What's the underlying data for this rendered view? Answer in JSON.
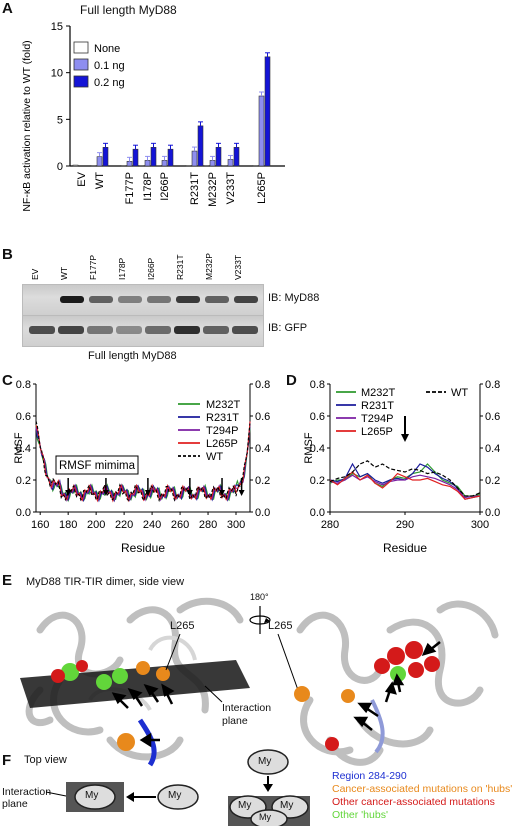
{
  "panels": {
    "A": {
      "letter": "A",
      "title": "Full length MyD88",
      "legend": [
        {
          "label": "None",
          "color": "#ffffff"
        },
        {
          "label": "0.1 ng",
          "color": "#8e8ef0"
        },
        {
          "label": "0.2 ng",
          "color": "#1414d6"
        }
      ]
    },
    "B": {
      "letter": "B",
      "lanes": [
        "EV",
        "WT",
        "F177P",
        "I178P",
        "I266P",
        "R231T",
        "M232P",
        "V233T"
      ],
      "blot_labels": [
        "IB: MyD88",
        "IB: GFP"
      ],
      "caption": "Full length MyD88"
    },
    "C": {
      "letter": "C"
    },
    "D": {
      "letter": "D"
    },
    "E": {
      "letter": "E",
      "title": "MyD88 TIR-TIR dimer, side view",
      "label_l265_left": "L265",
      "label_l265_right": "L265",
      "rotation": "180°",
      "plane_label": "Interaction plane"
    },
    "F": {
      "letter": "F",
      "title": "Top view",
      "plane_label": "Interaction plane",
      "my": "My",
      "legend": [
        {
          "label": "Region 284-290",
          "color": "#1d2fd1"
        },
        {
          "label": "Cancer-associated mutations on 'hubs'",
          "color": "#e8891c"
        },
        {
          "label": "Other cancer-associated mutations",
          "color": "#d41a1a"
        },
        {
          "label": "Other 'hubs'",
          "color": "#62d63a"
        }
      ]
    }
  },
  "chart_data": [
    {
      "type": "bar",
      "title": "Full length MyD88",
      "ylabel": "NF-κB activation relative to WT (fold)",
      "ylim": [
        0,
        15
      ],
      "yticks": [
        0,
        5,
        10,
        15
      ],
      "categories": [
        "EV",
        "WT",
        "F177P",
        "I178P",
        "I266P",
        "R231T",
        "M232P",
        "V233T",
        "L265P"
      ],
      "series": [
        {
          "name": "None",
          "color": "#ffffff",
          "values": [
            0.1,
            0.05,
            0.05,
            0.05,
            0.05,
            0.05,
            0.05,
            0.05,
            0.05
          ]
        },
        {
          "name": "0.1 ng",
          "color": "#8e8ef0",
          "values": [
            0,
            1.0,
            0.5,
            0.6,
            0.6,
            1.6,
            0.6,
            0.7,
            7.5
          ]
        },
        {
          "name": "0.2 ng",
          "color": "#1414d6",
          "values": [
            0,
            2.0,
            1.8,
            2.0,
            1.8,
            4.3,
            2.0,
            2.0,
            11.7
          ]
        }
      ]
    },
    {
      "type": "line",
      "xlabel": "Residue",
      "ylabel": "RMSF",
      "xlim": [
        157,
        310
      ],
      "ylim": [
        0,
        0.8
      ],
      "xticks": [
        160,
        180,
        200,
        220,
        240,
        260,
        280,
        300
      ],
      "yticks": [
        0.0,
        0.2,
        0.4,
        0.6,
        0.8
      ],
      "annotation": "RMSF mimima",
      "arrows_x": [
        180,
        207,
        237,
        267,
        290,
        304
      ],
      "series": [
        {
          "name": "M232T",
          "color": "#2e9a2e"
        },
        {
          "name": "R231T",
          "color": "#1c1c9c"
        },
        {
          "name": "T294P",
          "color": "#7b1fa2"
        },
        {
          "name": "L265P",
          "color": "#e02020"
        },
        {
          "name": "WT",
          "color": "#000000",
          "dashed": true
        }
      ]
    },
    {
      "type": "line",
      "xlabel": "Residue",
      "ylabel": "RMSF",
      "xlim": [
        280,
        300
      ],
      "ylim": [
        0,
        0.8
      ],
      "xticks": [
        280,
        290,
        300
      ],
      "yticks": [
        0.0,
        0.2,
        0.4,
        0.6,
        0.8
      ],
      "arrow_x": 290,
      "series": [
        {
          "name": "M232T",
          "color": "#2e9a2e",
          "x": [
            280,
            281,
            282,
            283,
            284,
            285,
            286,
            287,
            288,
            289,
            290,
            291,
            292,
            293,
            294,
            295,
            296,
            297,
            298,
            299,
            300
          ],
          "y": [
            0.18,
            0.2,
            0.2,
            0.24,
            0.22,
            0.24,
            0.18,
            0.16,
            0.2,
            0.22,
            0.21,
            0.24,
            0.25,
            0.3,
            0.25,
            0.2,
            0.18,
            0.16,
            0.1,
            0.1,
            0.11
          ]
        },
        {
          "name": "R231T",
          "color": "#1c1c9c",
          "x": [
            280,
            281,
            282,
            283,
            284,
            285,
            286,
            287,
            288,
            289,
            290,
            291,
            292,
            293,
            294,
            295,
            296,
            297,
            298,
            299,
            300
          ],
          "y": [
            0.2,
            0.19,
            0.21,
            0.3,
            0.22,
            0.24,
            0.2,
            0.18,
            0.2,
            0.21,
            0.2,
            0.24,
            0.3,
            0.28,
            0.24,
            0.21,
            0.19,
            0.15,
            0.08,
            0.09,
            0.1
          ]
        },
        {
          "name": "T294P",
          "color": "#7b1fa2",
          "x": [
            280,
            281,
            282,
            283,
            284,
            285,
            286,
            287,
            288,
            289,
            290,
            291,
            292,
            293,
            294,
            295,
            296,
            297,
            298,
            299,
            300
          ],
          "y": [
            0.19,
            0.18,
            0.2,
            0.23,
            0.2,
            0.22,
            0.19,
            0.17,
            0.19,
            0.2,
            0.2,
            0.22,
            0.23,
            0.22,
            0.21,
            0.19,
            0.17,
            0.14,
            0.09,
            0.1,
            0.1
          ]
        },
        {
          "name": "L265P",
          "color": "#e02020",
          "x": [
            280,
            281,
            282,
            283,
            284,
            285,
            286,
            287,
            288,
            289,
            290,
            291,
            292,
            293,
            294,
            295,
            296,
            297,
            298,
            299,
            300
          ],
          "y": [
            0.2,
            0.17,
            0.21,
            0.25,
            0.2,
            0.23,
            0.18,
            0.15,
            0.19,
            0.24,
            0.22,
            0.2,
            0.2,
            0.21,
            0.19,
            0.17,
            0.16,
            0.13,
            0.08,
            0.09,
            0.1
          ]
        },
        {
          "name": "WT",
          "color": "#000000",
          "dashed": true,
          "x": [
            280,
            281,
            282,
            283,
            284,
            285,
            286,
            287,
            288,
            289,
            290,
            291,
            292,
            293,
            294,
            295,
            296,
            297,
            298,
            299,
            300
          ],
          "y": [
            0.19,
            0.21,
            0.22,
            0.25,
            0.3,
            0.32,
            0.28,
            0.3,
            0.27,
            0.26,
            0.25,
            0.27,
            0.26,
            0.24,
            0.25,
            0.23,
            0.2,
            0.15,
            0.1,
            0.1,
            0.12
          ]
        }
      ]
    }
  ]
}
